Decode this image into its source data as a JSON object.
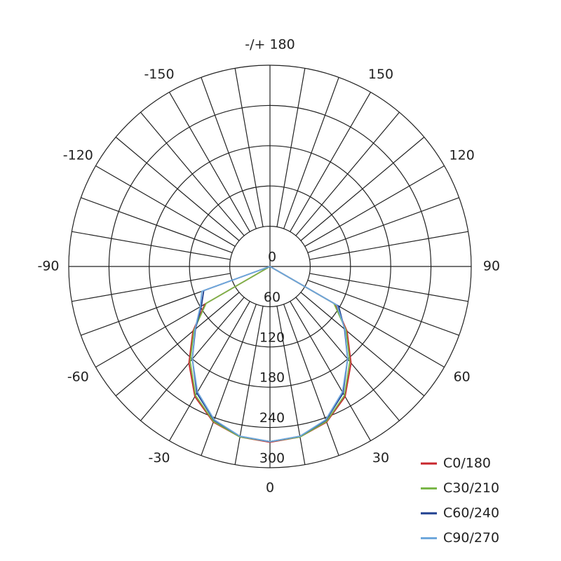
{
  "chart_data": {
    "type": "polar",
    "x": [
      -90,
      -80,
      -70,
      -60,
      -50,
      -40,
      -30,
      -20,
      -10,
      0,
      10,
      20,
      30,
      40,
      50,
      60,
      70,
      80,
      90
    ],
    "series": [
      {
        "name": "C0/180",
        "color": "#c8262c",
        "values": [
          0,
          0,
          0,
          112,
          150,
          188,
          224,
          247,
          258,
          262,
          258,
          247,
          224,
          188,
          150,
          112,
          0,
          0,
          0
        ]
      },
      {
        "name": "C30/210",
        "color": "#7ab648",
        "values": [
          0,
          0,
          0,
          110,
          148,
          185,
          222,
          246,
          258,
          261,
          258,
          246,
          222,
          185,
          148,
          110,
          0,
          0,
          0
        ]
      },
      {
        "name": "C60/240",
        "color": "#1f3f8f",
        "values": [
          0,
          0,
          105,
          118,
          145,
          180,
          218,
          244,
          257,
          261,
          257,
          244,
          218,
          180,
          145,
          118,
          0,
          0,
          0
        ]
      },
      {
        "name": "C90/270",
        "color": "#6fa8dc",
        "values": [
          0,
          0,
          108,
          120,
          146,
          180,
          216,
          243,
          257,
          261,
          257,
          243,
          216,
          180,
          146,
          115,
          0,
          0,
          0
        ]
      }
    ],
    "rlim": [
      0,
      300
    ],
    "rticks": [
      0,
      60,
      120,
      180,
      240,
      300
    ],
    "aticks": [
      0,
      30,
      60,
      90,
      120,
      150,
      {
        "value": 180,
        "label": "-/+ 180"
      },
      -150,
      -120,
      -90,
      -60,
      -30
    ],
    "legend": "lower right"
  }
}
